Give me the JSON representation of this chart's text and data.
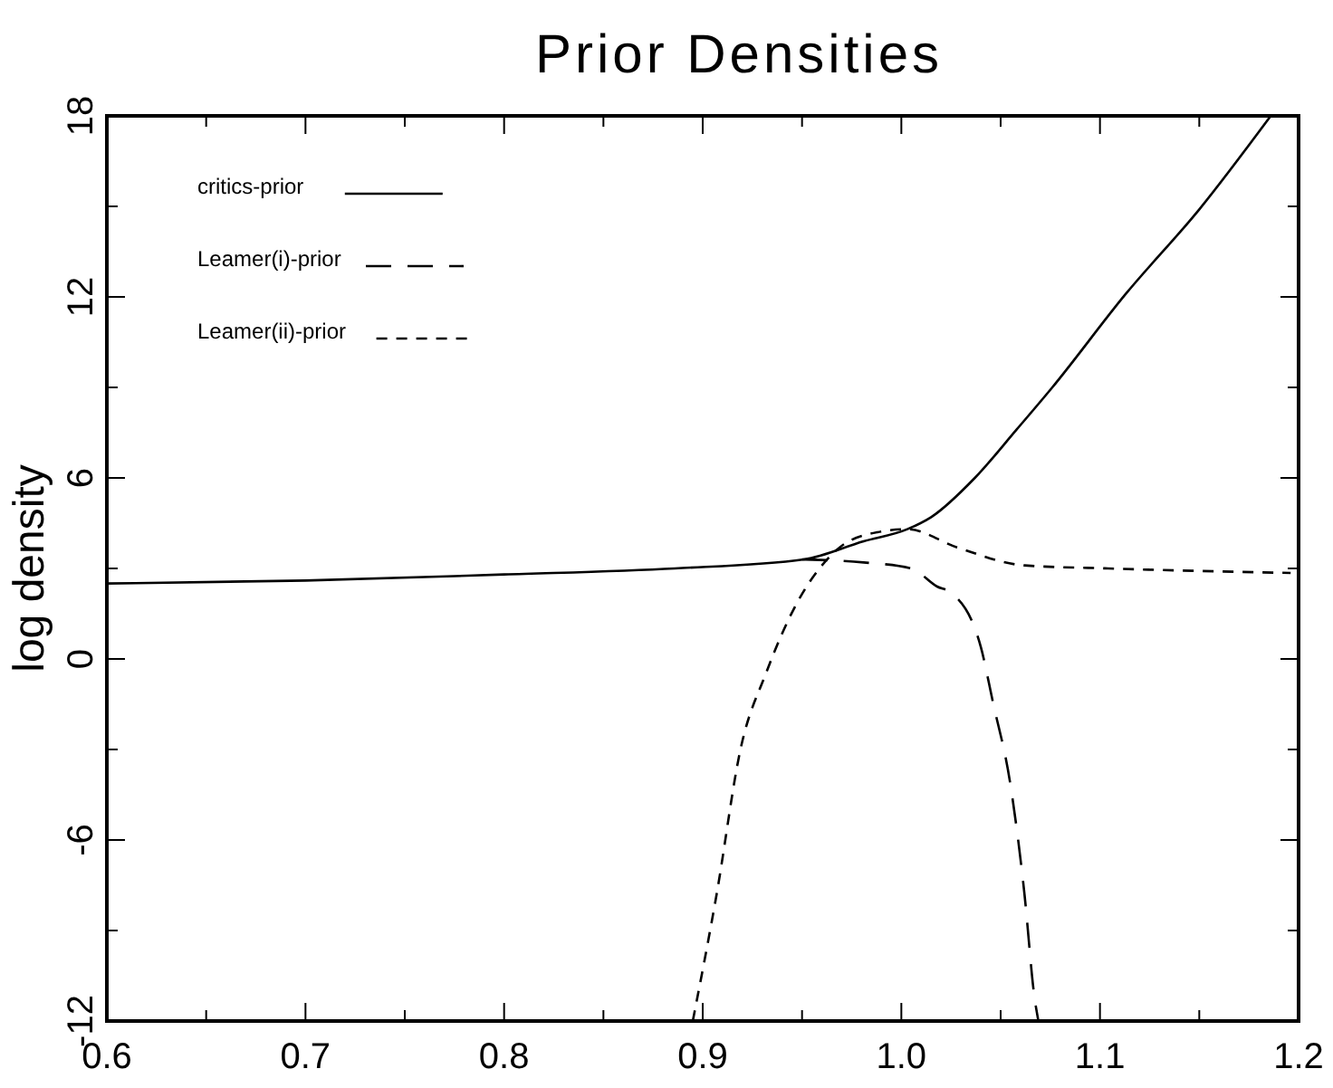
{
  "chart_data": {
    "type": "line",
    "title": "Prior Densities",
    "ylabel": "log density",
    "xlim": [
      0.6,
      1.2
    ],
    "ylim": [
      -12,
      18
    ],
    "xticks": [
      {
        "value": 0.6,
        "label": "0.6"
      },
      {
        "value": 0.65,
        "label": null
      },
      {
        "value": 0.7,
        "label": "0.7"
      },
      {
        "value": 0.75,
        "label": null
      },
      {
        "value": 0.8,
        "label": "0.8"
      },
      {
        "value": 0.85,
        "label": null
      },
      {
        "value": 0.9,
        "label": "0.9"
      },
      {
        "value": 0.95,
        "label": null
      },
      {
        "value": 1.0,
        "label": "1.0"
      },
      {
        "value": 1.05,
        "label": null
      },
      {
        "value": 1.1,
        "label": "1.1"
      },
      {
        "value": 1.15,
        "label": null
      },
      {
        "value": 1.2,
        "label": "1.2"
      }
    ],
    "yticks": [
      -12,
      {
        "value": -9,
        "label": null
      },
      -6,
      {
        "value": -3,
        "label": null
      },
      0,
      {
        "value": 3,
        "label": null
      },
      6,
      {
        "value": 9,
        "label": null
      },
      12,
      {
        "value": 15,
        "label": null
      },
      18
    ],
    "grid": false,
    "legend": "top left",
    "series": [
      {
        "name": "critics-prior",
        "color": "#000000",
        "line_style": "solid",
        "x": [
          0.6,
          0.7,
          0.8,
          0.886,
          0.951,
          0.981,
          1.003,
          1.015,
          1.037,
          1.058,
          1.076,
          1.113,
          1.15,
          1.186
        ],
        "values": [
          2.5,
          2.6,
          2.8,
          3.0,
          3.3,
          3.9,
          4.3,
          4.7,
          6.0,
          7.6,
          9.0,
          12.1,
          14.9,
          18
        ]
      },
      {
        "name": "Leamer(i)-prior",
        "color": "#000000",
        "line_style": "longdash",
        "x": [
          0.95,
          0.981,
          1.005,
          1.018,
          1.025,
          1.04,
          1.046,
          1.055,
          1.062,
          1.067,
          1.069
        ],
        "values": [
          3.3,
          3.2,
          3.0,
          2.4,
          2.2,
          0.4,
          -1.4,
          -4.2,
          -7.8,
          -11.2,
          -12
        ]
      },
      {
        "name": "Leamer(ii)-prior",
        "color": "#000000",
        "line_style": "dashed",
        "x": [
          0.895,
          0.907,
          0.919,
          0.932,
          0.947,
          0.96,
          0.969,
          0.988,
          1.003,
          1.028,
          1.062,
          1.104,
          1.196
        ],
        "values": [
          -12,
          -7.8,
          -3.0,
          -0.45,
          1.8,
          3.1,
          3.7,
          4.2,
          4.3,
          3.7,
          3.1,
          3.0,
          2.85
        ]
      }
    ]
  }
}
